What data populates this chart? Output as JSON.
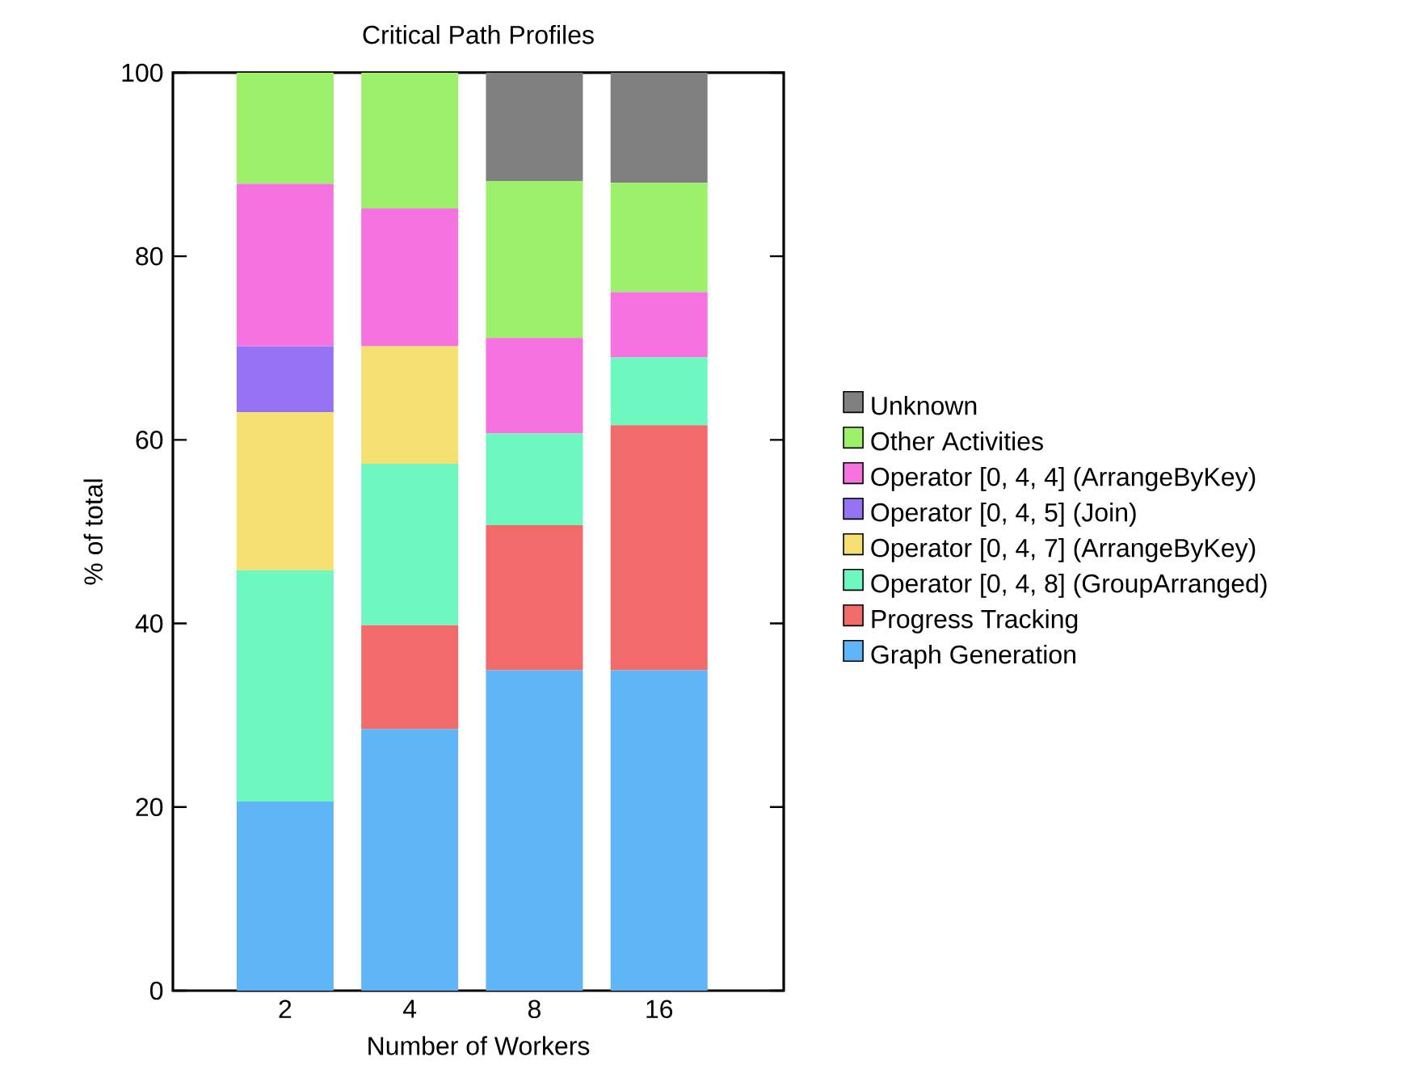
{
  "chart_data": {
    "type": "bar",
    "stacked": true,
    "title": "Critical Path Profiles",
    "xlabel": "Number of Workers",
    "ylabel": "% of total",
    "categories": [
      "2",
      "4",
      "8",
      "16"
    ],
    "series": [
      {
        "name": "Graph Generation",
        "color": "#5fb5f5",
        "values": [
          20.6,
          28.5,
          34.9,
          34.9
        ]
      },
      {
        "name": "Progress Tracking",
        "color": "#f26b6b",
        "values": [
          0,
          11.3,
          15.8,
          26.7
        ]
      },
      {
        "name": "Operator [0, 4, 8] (GroupArranged)",
        "color": "#6ef7be",
        "values": [
          25.2,
          17.6,
          10.0,
          7.4
        ]
      },
      {
        "name": "Operator [0, 4, 7] (ArrangeByKey)",
        "color": "#f6e072",
        "values": [
          17.2,
          12.8,
          0,
          0
        ]
      },
      {
        "name": "Operator [0, 4, 5] (Join)",
        "color": "#9673f5",
        "values": [
          7.2,
          0,
          0,
          0
        ]
      },
      {
        "name": "Operator [0, 4, 4] (ArrangeByKey)",
        "color": "#f572e0",
        "values": [
          17.7,
          15.0,
          10.4,
          7.1
        ]
      },
      {
        "name": "Other Activities",
        "color": "#9cf06a",
        "values": [
          12.1,
          14.8,
          17.1,
          11.9
        ]
      },
      {
        "name": "Unknown",
        "color": "#808080",
        "values": [
          0,
          0,
          11.8,
          12.0
        ]
      }
    ],
    "ylim": [
      0,
      100
    ],
    "yticks": [
      0,
      20,
      40,
      60,
      80,
      100
    ],
    "legend": "right",
    "grid": false
  }
}
